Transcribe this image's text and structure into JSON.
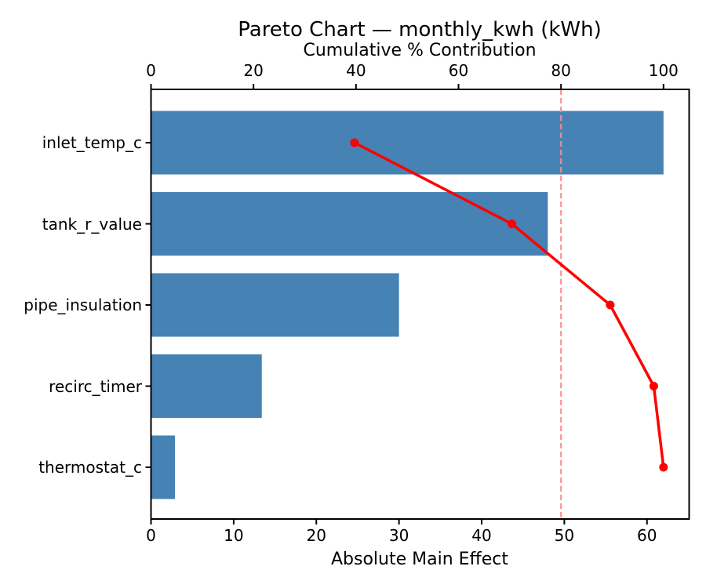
{
  "chart_data": {
    "type": "bar",
    "subtype": "pareto",
    "orientation": "horizontal",
    "title": "Pareto Chart — monthly_kwh (kWh)",
    "xlabel_top": "Cumulative % Contribution",
    "xlabel_bottom": "Absolute Main Effect",
    "categories": [
      "inlet_temp_c",
      "tank_r_value",
      "pipe_insulation",
      "recirc_timer",
      "thermostat_c"
    ],
    "series": [
      {
        "name": "Absolute Main Effect",
        "type": "bar",
        "axis": "bottom",
        "values": [
          62,
          48,
          30,
          13.4,
          2.9
        ]
      },
      {
        "name": "Cumulative % Contribution",
        "type": "line",
        "axis": "top",
        "values": [
          39.7,
          70.4,
          89.6,
          98.1,
          100.0
        ]
      }
    ],
    "xlim_bottom": [
      0,
      65.1
    ],
    "xticks_bottom": [
      0,
      10,
      20,
      30,
      40,
      50,
      60
    ],
    "xlim_top": [
      0,
      105
    ],
    "xticks_top": [
      0,
      20,
      40,
      60,
      80,
      100
    ],
    "threshold_pct": 80,
    "grid": false,
    "legend_position": "none",
    "colors": {
      "bar": "#4682B4",
      "line": "#FF0000",
      "marker": "#FF0000",
      "threshold": "#FF8A8A",
      "spine": "#000000",
      "text": "#000000",
      "background": "#FFFFFF"
    }
  }
}
